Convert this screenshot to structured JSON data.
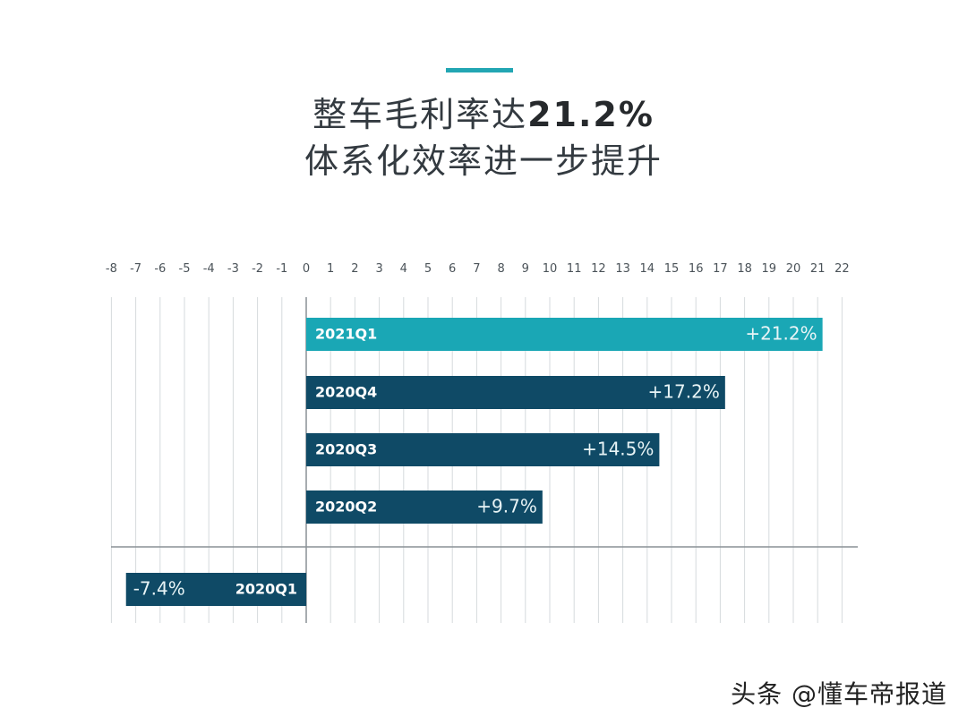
{
  "header": {
    "title_prefix": "整车毛利率达",
    "title_value": "21.2%",
    "subtitle": "体系化效率进一步提升"
  },
  "watermark": "头条 @懂车帝报道",
  "colors": {
    "highlight": "#1aa7b5",
    "bar": "#0f4a66",
    "accent": "#22a6b3",
    "grid": "#d6dadd",
    "axis": "#8a9196"
  },
  "chart_data": {
    "type": "bar",
    "orientation": "horizontal",
    "title": "整车毛利率达21.2% 体系化效率进一步提升",
    "xlim": [
      -8,
      22
    ],
    "x_ticks": [
      -8,
      -7,
      -6,
      -5,
      -4,
      -3,
      -2,
      -1,
      0,
      1,
      2,
      3,
      4,
      5,
      6,
      7,
      8,
      9,
      10,
      11,
      12,
      13,
      14,
      15,
      16,
      17,
      18,
      19,
      20,
      21,
      22
    ],
    "grid": true,
    "categories": [
      "2021Q1",
      "2020Q4",
      "2020Q3",
      "2020Q2",
      "2020Q1"
    ],
    "values": [
      21.2,
      17.2,
      14.5,
      9.7,
      -7.4
    ],
    "value_labels": [
      "+21.2%",
      "+17.2%",
      "+14.5%",
      "+9.7%",
      "-7.4%"
    ],
    "highlight_index": 0
  }
}
